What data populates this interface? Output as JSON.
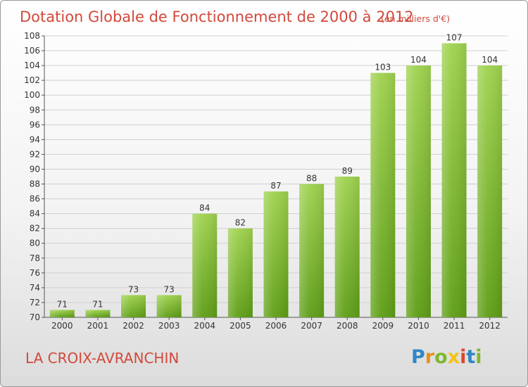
{
  "title": "Dotation Globale de Fonctionnement de 2000 à 2012",
  "unit_note": "(en milliers d'€)",
  "commune": "LA CROIX-AVRANCHIN",
  "logo": {
    "letters": [
      {
        "ch": "P",
        "color": "#2f86c6"
      },
      {
        "ch": "r",
        "color": "#e8901c"
      },
      {
        "ch": "o",
        "color": "#7cb82f"
      },
      {
        "ch": "x",
        "color": "#f2c218"
      },
      {
        "ch": "i",
        "color": "#e0452c"
      },
      {
        "ch": "t",
        "color": "#2f86c6"
      },
      {
        "ch": "i",
        "color": "#7cb82f"
      }
    ]
  },
  "colors": {
    "bar_top": "#9fd24e",
    "bar_bottom": "#5e9e16",
    "title": "#d2493c",
    "grid": "#cfcfcf"
  },
  "chart_data": {
    "type": "bar",
    "title": "Dotation Globale de Fonctionnement de 2000 à 2012",
    "subtitle": "(en milliers d'€)",
    "categories": [
      "2000",
      "2001",
      "2002",
      "2003",
      "2004",
      "2005",
      "2006",
      "2007",
      "2008",
      "2009",
      "2010",
      "2011",
      "2012"
    ],
    "values": [
      71,
      71,
      73,
      73,
      84,
      82,
      87,
      88,
      89,
      103,
      104,
      107,
      104
    ],
    "ylim": [
      70,
      108
    ],
    "yticks": [
      70,
      72,
      74,
      76,
      78,
      80,
      82,
      84,
      86,
      88,
      90,
      92,
      94,
      96,
      98,
      100,
      102,
      104,
      106,
      108
    ],
    "grid": true,
    "xlabel": "",
    "ylabel": ""
  }
}
